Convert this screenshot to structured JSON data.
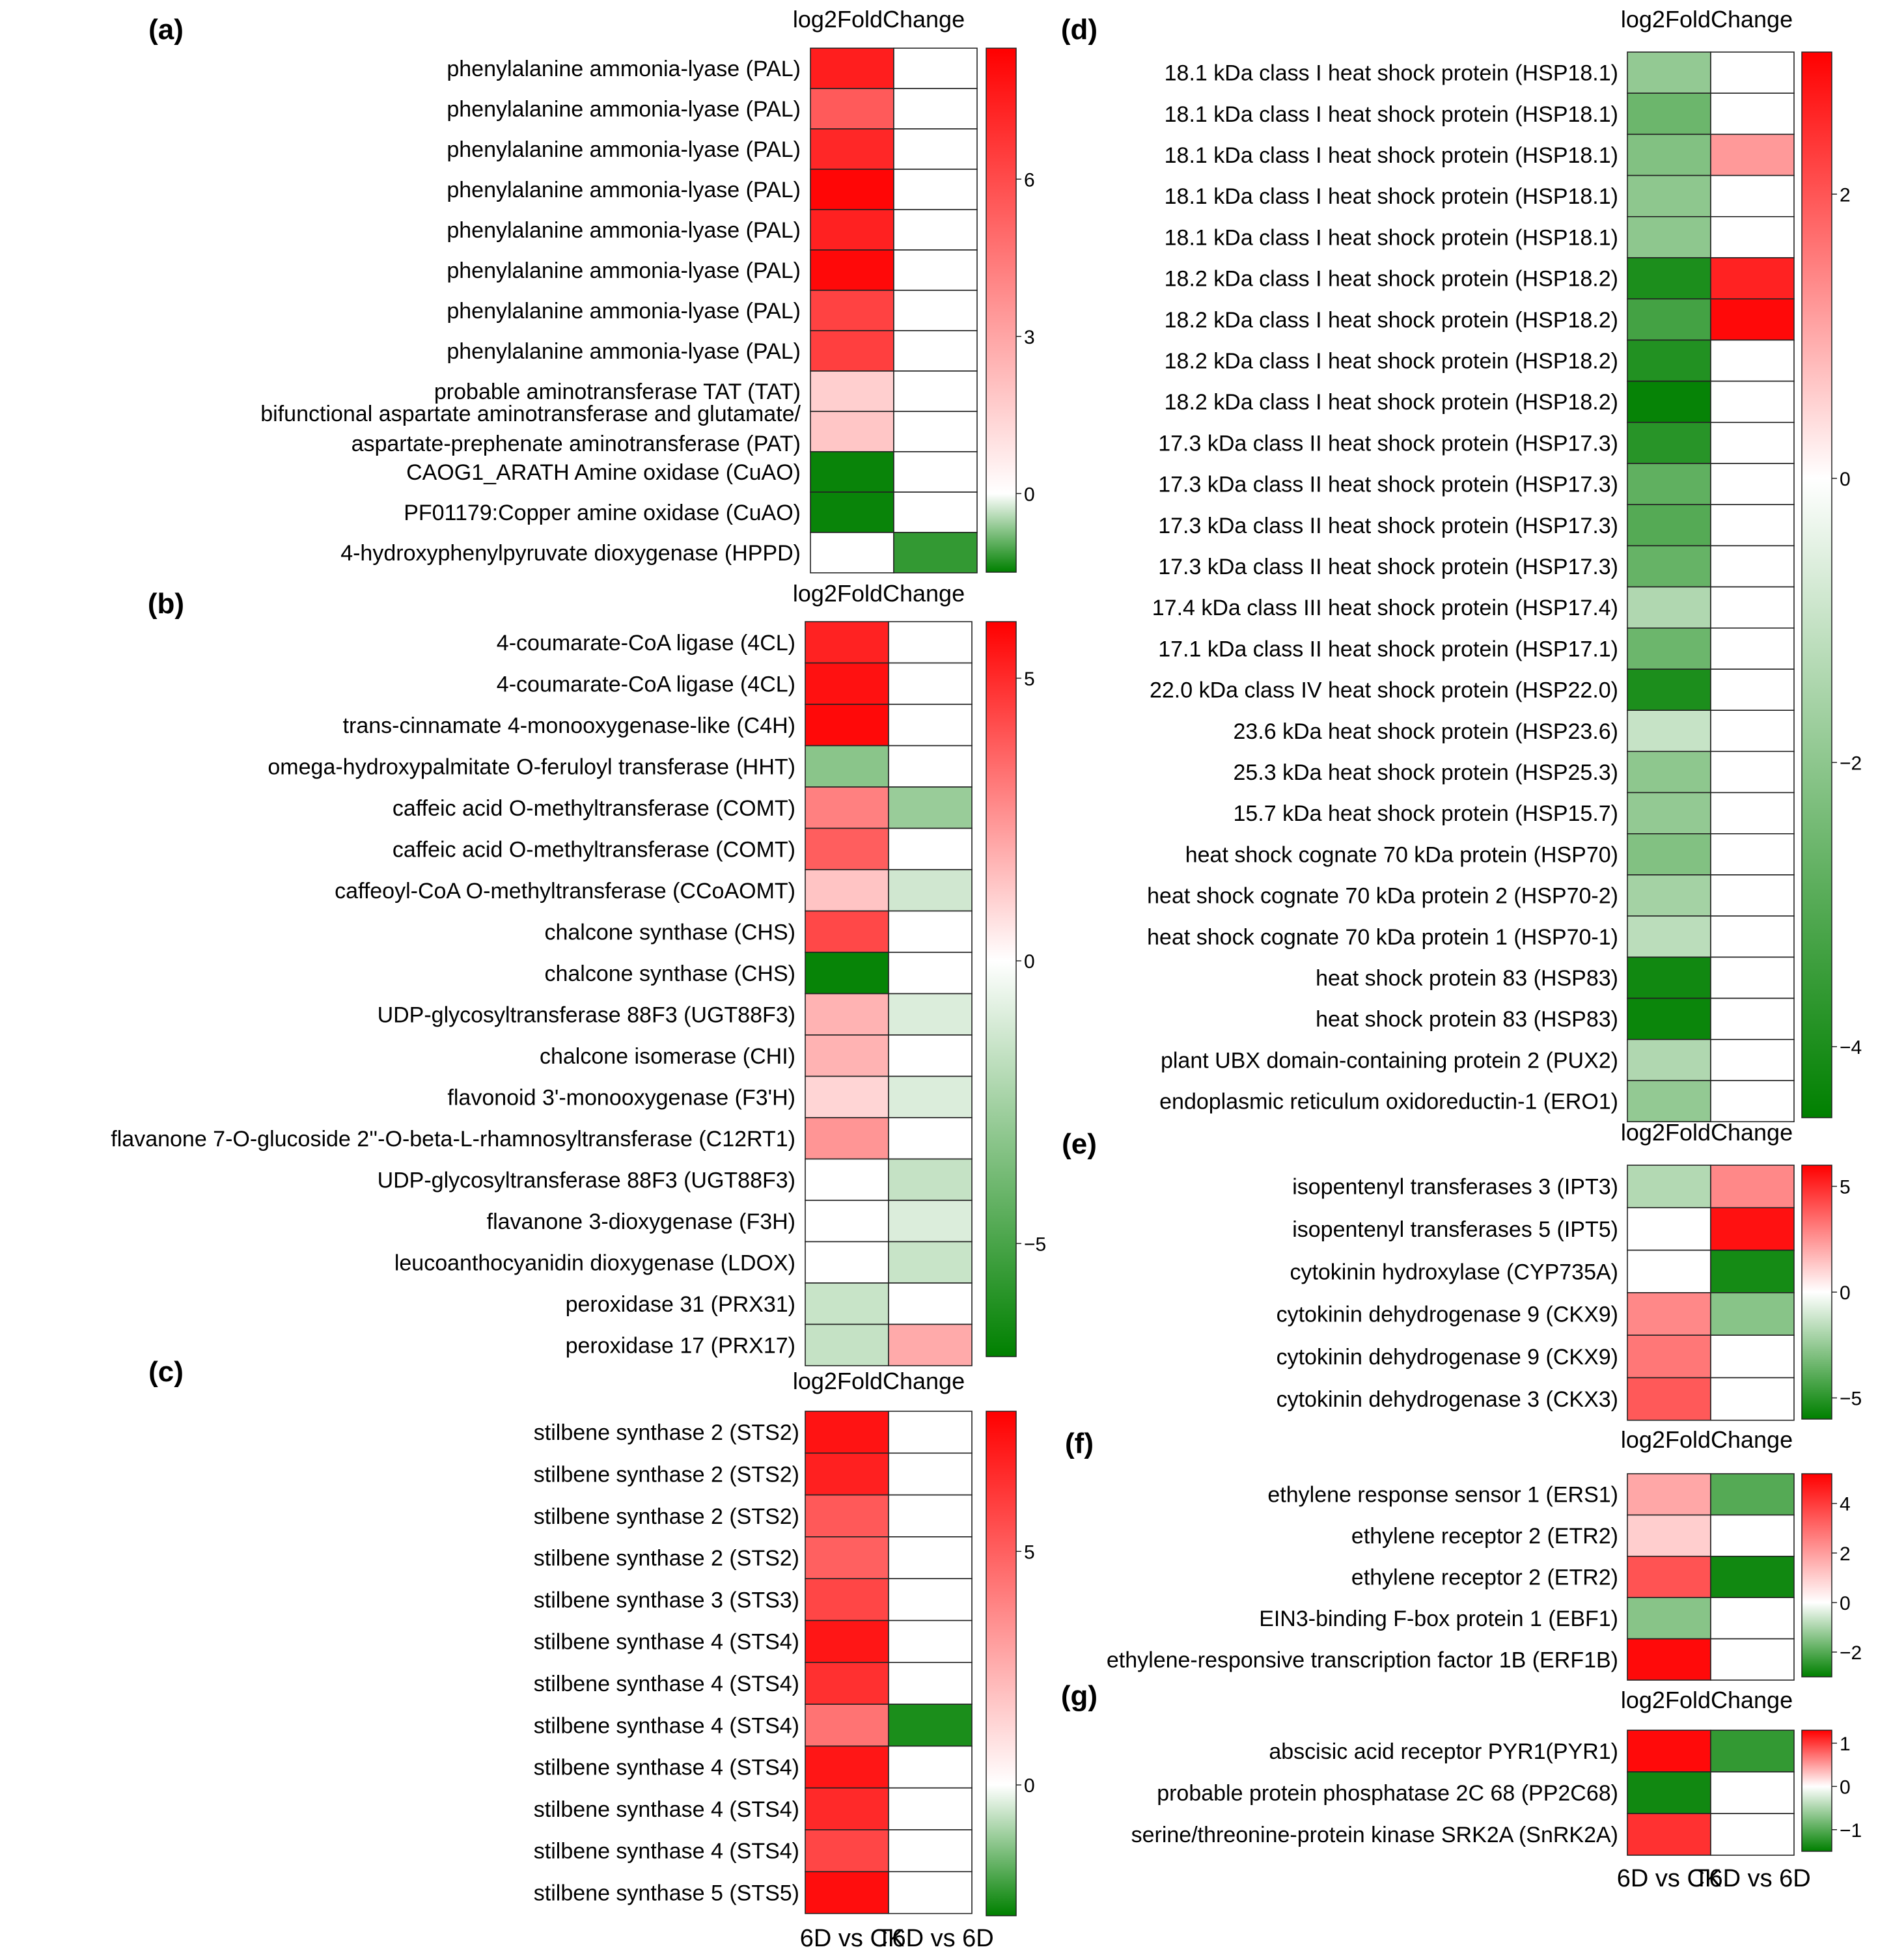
{
  "chart_data": [
    {
      "type": "heatmap",
      "panel": "(a)",
      "legend_title": "log2FoldChange",
      "columns": [
        "6D vs CK",
        "T6D vs 6D"
      ],
      "scale": {
        "min": -1.5,
        "max": 8.5,
        "ticks": [
          0,
          3,
          6
        ]
      },
      "rows": [
        {
          "label": "phenylalanine ammonia-lyase (PAL)",
          "values": [
            7.5,
            0
          ]
        },
        {
          "label": "phenylalanine ammonia-lyase (PAL)",
          "values": [
            5.5,
            0
          ]
        },
        {
          "label": "phenylalanine ammonia-lyase (PAL)",
          "values": [
            7.2,
            0
          ]
        },
        {
          "label": "phenylalanine ammonia-lyase (PAL)",
          "values": [
            8.3,
            0
          ]
        },
        {
          "label": "phenylalanine ammonia-lyase (PAL)",
          "values": [
            7.4,
            0
          ]
        },
        {
          "label": "phenylalanine ammonia-lyase (PAL)",
          "values": [
            8.2,
            0
          ]
        },
        {
          "label": "phenylalanine ammonia-lyase (PAL)",
          "values": [
            6.3,
            0
          ]
        },
        {
          "label": "phenylalanine ammonia-lyase (PAL)",
          "values": [
            6.4,
            0
          ]
        },
        {
          "label": "probable aminotransferase TAT (TAT)",
          "values": [
            1.6,
            0
          ]
        },
        {
          "label": [
            "bifunctional aspartate aminotransferase and glutamate/",
            "aspartate-prephenate aminotransferase (PAT)"
          ],
          "values": [
            1.9,
            0
          ]
        },
        {
          "label": "CAOG1_ARATH Amine oxidase (CuAO)",
          "values": [
            -1.45,
            0
          ]
        },
        {
          "label": "PF01179:Copper amine oxidase (CuAO)",
          "values": [
            -1.45,
            0
          ]
        },
        {
          "label": "4-hydroxyphenylpyruvate dioxygenase (HPPD)",
          "values": [
            0,
            -1.2
          ]
        }
      ]
    },
    {
      "type": "heatmap",
      "panel": "(b)",
      "legend_title": "log2FoldChange",
      "columns": [
        "6D vs CK",
        "T6D vs 6D"
      ],
      "scale": {
        "min": -7,
        "max": 6,
        "ticks": [
          5,
          0,
          -5
        ]
      },
      "rows": [
        {
          "label": "4-coumarate-CoA ligase (4CL)",
          "values": [
            5.2,
            0
          ]
        },
        {
          "label": "4-coumarate-CoA ligase (4CL)",
          "values": [
            5.6,
            0
          ]
        },
        {
          "label": "trans-cinnamate 4-monooxygenase-like (C4H)",
          "values": [
            5.8,
            0
          ]
        },
        {
          "label": "omega-hydroxypalmitate O-feruloyl transferase (HHT)",
          "values": [
            -3.2,
            0
          ]
        },
        {
          "label": "caffeic acid O-methyltransferase (COMT)",
          "values": [
            3.0,
            -2.8
          ]
        },
        {
          "label": "caffeic acid O-methyltransferase (COMT)",
          "values": [
            3.8,
            0
          ]
        },
        {
          "label": "caffeoyl-CoA O-methyltransferase (CCoAOMT)",
          "values": [
            1.4,
            -1.3
          ]
        },
        {
          "label": "chalcone synthase (CHS)",
          "values": [
            4.3,
            0
          ]
        },
        {
          "label": "chalcone synthase (CHS)",
          "values": [
            -6.8,
            0
          ]
        },
        {
          "label": "UDP-glycosyltransferase 88F3 (UGT88F3)",
          "values": [
            1.8,
            -1.0
          ]
        },
        {
          "label": "chalcone isomerase (CHI)",
          "values": [
            1.8,
            0
          ]
        },
        {
          "label": "flavonoid 3'-monooxygenase (F3'H)",
          "values": [
            1.0,
            -1.0
          ]
        },
        {
          "label": "flavanone 7-O-glucoside 2''-O-beta-L-rhamnosyltransferase (C12RT1)",
          "values": [
            2.5,
            0
          ]
        },
        {
          "label": "UDP-glycosyltransferase 88F3 (UGT88F3)",
          "values": [
            0,
            -1.6
          ]
        },
        {
          "label": "flavanone 3-dioxygenase (F3H)",
          "values": [
            0,
            -1.0
          ]
        },
        {
          "label": "leucoanthocyanidin dioxygenase (LDOX)",
          "values": [
            0,
            -1.5
          ]
        },
        {
          "label": "peroxidase 31 (PRX31)",
          "values": [
            -1.5,
            0
          ]
        },
        {
          "label": "peroxidase 17 (PRX17)",
          "values": [
            -1.6,
            2.0
          ]
        }
      ]
    },
    {
      "type": "heatmap",
      "panel": "(c)",
      "legend_title": "log2FoldChange",
      "columns": [
        "6D vs CK",
        "T6D vs 6D"
      ],
      "scale": {
        "min": -2.8,
        "max": 8.0,
        "ticks": [
          5,
          0
        ]
      },
      "rows": [
        {
          "label": "stilbene synthase 2 (STS2)",
          "values": [
            7.4,
            0
          ]
        },
        {
          "label": "stilbene synthase 2 (STS2)",
          "values": [
            7.0,
            0
          ]
        },
        {
          "label": "stilbene synthase 2 (STS2)",
          "values": [
            5.2,
            0
          ]
        },
        {
          "label": "stilbene synthase 2 (STS2)",
          "values": [
            5.0,
            0
          ]
        },
        {
          "label": "stilbene synthase 3 (STS3)",
          "values": [
            5.8,
            0
          ]
        },
        {
          "label": "stilbene synthase 4 (STS4)",
          "values": [
            7.3,
            0
          ]
        },
        {
          "label": "stilbene synthase 4 (STS4)",
          "values": [
            6.5,
            0
          ]
        },
        {
          "label": "stilbene synthase 4 (STS4)",
          "values": [
            4.4,
            -2.5
          ]
        },
        {
          "label": "stilbene synthase 4 (STS4)",
          "values": [
            7.3,
            0
          ]
        },
        {
          "label": "stilbene synthase 4 (STS4)",
          "values": [
            6.7,
            0
          ]
        },
        {
          "label": "stilbene synthase 4 (STS4)",
          "values": [
            5.8,
            0
          ]
        },
        {
          "label": "stilbene synthase 5 (STS5)",
          "values": [
            7.6,
            0
          ]
        }
      ]
    },
    {
      "type": "heatmap",
      "panel": "(d)",
      "legend_title": "log2FoldChange",
      "columns": [
        "6D vs CK",
        "T6D vs 6D"
      ],
      "scale": {
        "min": -4.5,
        "max": 3.0,
        "ticks": [
          2,
          0,
          -2,
          -4
        ]
      },
      "rows": [
        {
          "label": "18.1 kDa class I heat shock protein (HSP18.1)",
          "values": [
            -1.9,
            0
          ]
        },
        {
          "label": "18.1 kDa class I heat shock protein (HSP18.1)",
          "values": [
            -2.6,
            0
          ]
        },
        {
          "label": "18.1 kDa class I heat shock protein (HSP18.1)",
          "values": [
            -2.2,
            1.2
          ]
        },
        {
          "label": "18.1 kDa class I heat shock protein (HSP18.1)",
          "values": [
            -2.0,
            0
          ]
        },
        {
          "label": "18.1 kDa class I heat shock protein (HSP18.1)",
          "values": [
            -2.0,
            0
          ]
        },
        {
          "label": "18.2 kDa class I heat shock protein (HSP18.2)",
          "values": [
            -4.0,
            2.6
          ]
        },
        {
          "label": "18.2 kDa class I heat shock protein (HSP18.2)",
          "values": [
            -3.3,
            2.9
          ]
        },
        {
          "label": "18.2 kDa class I heat shock protein (HSP18.2)",
          "values": [
            -3.9,
            0
          ]
        },
        {
          "label": "18.2 kDa class I heat shock protein (HSP18.2)",
          "values": [
            -4.4,
            0
          ]
        },
        {
          "label": "17.3 kDa class II heat shock protein (HSP17.3)",
          "values": [
            -3.8,
            0
          ]
        },
        {
          "label": "17.3 kDa class II heat shock protein (HSP17.3)",
          "values": [
            -2.8,
            0
          ]
        },
        {
          "label": "17.3 kDa class II heat shock protein (HSP17.3)",
          "values": [
            -3.0,
            0
          ]
        },
        {
          "label": "17.3 kDa class II heat shock protein (HSP17.3)",
          "values": [
            -2.7,
            0
          ]
        },
        {
          "label": "17.4 kDa class III heat shock protein (HSP17.4)",
          "values": [
            -1.4,
            0
          ]
        },
        {
          "label": "17.1 kDa class II heat shock protein (HSP17.1)",
          "values": [
            -2.6,
            0
          ]
        },
        {
          "label": "22.0 kDa class IV heat shock protein (HSP22.0)",
          "values": [
            -4.0,
            0
          ]
        },
        {
          "label": "23.6 kDa heat shock protein (HSP23.6)",
          "values": [
            -1.0,
            0
          ]
        },
        {
          "label": "25.3 kDa heat shock protein (HSP25.3)",
          "values": [
            -2.0,
            0
          ]
        },
        {
          "label": "15.7 kDa heat shock protein (HSP15.7)",
          "values": [
            -1.9,
            0
          ]
        },
        {
          "label": "heat shock cognate 70 kDa protein (HSP70)",
          "values": [
            -2.2,
            0
          ]
        },
        {
          "label": "heat shock cognate 70 kDa protein 2 (HSP70-2)",
          "values": [
            -1.6,
            0
          ]
        },
        {
          "label": "heat shock cognate 70 kDa protein 1 (HSP70-1)",
          "values": [
            -1.2,
            0
          ]
        },
        {
          "label": "heat shock protein 83 (HSP83)",
          "values": [
            -4.2,
            0
          ]
        },
        {
          "label": "heat shock protein 83 (HSP83)",
          "values": [
            -4.3,
            0
          ]
        },
        {
          "label": "plant UBX domain-containing protein 2 (PUX2)",
          "values": [
            -1.4,
            0
          ]
        },
        {
          "label": "endoplasmic reticulum oxidoreductin-1 (ERO1)",
          "values": [
            -1.9,
            0
          ]
        }
      ]
    },
    {
      "type": "heatmap",
      "panel": "(e)",
      "legend_title": "log2FoldChange",
      "columns": [
        "6D vs CK",
        "T6D vs 6D"
      ],
      "scale": {
        "min": -6.0,
        "max": 6.0,
        "ticks": [
          5,
          0,
          -5
        ]
      },
      "rows": [
        {
          "label": "isopentenyl transferases 3 (IPT3)",
          "values": [
            -1.8,
            2.8
          ]
        },
        {
          "label": "isopentenyl transferases 5 (IPT5)",
          "values": [
            0,
            5.6
          ]
        },
        {
          "label": "cytokinin hydroxylase (CYP735A)",
          "values": [
            0,
            -5.5
          ]
        },
        {
          "label": "cytokinin dehydrogenase 9 (CKX9)",
          "values": [
            2.8,
            -2.8
          ]
        },
        {
          "label": "cytokinin dehydrogenase 9 (CKX9)",
          "values": [
            3.2,
            0
          ]
        },
        {
          "label": "cytokinin dehydrogenase 3 (CKX3)",
          "values": [
            3.9,
            0
          ]
        }
      ]
    },
    {
      "type": "heatmap",
      "panel": "(f)",
      "legend_title": "log2FoldChange",
      "columns": [
        "6D vs CK",
        "T6D vs 6D"
      ],
      "scale": {
        "min": -3.0,
        "max": 5.2,
        "ticks": [
          4,
          2,
          0,
          -2
        ]
      },
      "rows": [
        {
          "label": "ethylene response sensor 1 (ERS1)",
          "values": [
            1.8,
            -2.0
          ]
        },
        {
          "label": "ethylene receptor 2 (ETR2)",
          "values": [
            1.0,
            0
          ]
        },
        {
          "label": "ethylene receptor 2 (ETR2)",
          "values": [
            3.5,
            -2.8
          ]
        },
        {
          "label": "EIN3-binding F-box protein 1 (EBF1)",
          "values": [
            -1.4,
            0
          ]
        },
        {
          "label": "ethylene-responsive transcription factor 1B (ERF1B)",
          "values": [
            5.0,
            0
          ]
        }
      ]
    },
    {
      "type": "heatmap",
      "panel": "(g)",
      "legend_title": "log2FoldChange",
      "columns": [
        "6D vs CK",
        "T6D vs 6D"
      ],
      "scale": {
        "min": -1.5,
        "max": 1.3,
        "ticks": [
          1,
          0,
          -1
        ]
      },
      "rows": [
        {
          "label": "abscisic acid receptor PYR1(PYR1)",
          "values": [
            1.25,
            -1.2
          ]
        },
        {
          "label": "probable protein phosphatase 2C 68 (PP2C68)",
          "values": [
            -1.4,
            0
          ]
        },
        {
          "label": "serine/threonine-protein kinase SRK2A (SnRK2A)",
          "values": [
            1.05,
            0
          ]
        }
      ]
    }
  ],
  "colors": {
    "high": "#ff0000",
    "mid": "#ffffff",
    "low": "#008000"
  }
}
